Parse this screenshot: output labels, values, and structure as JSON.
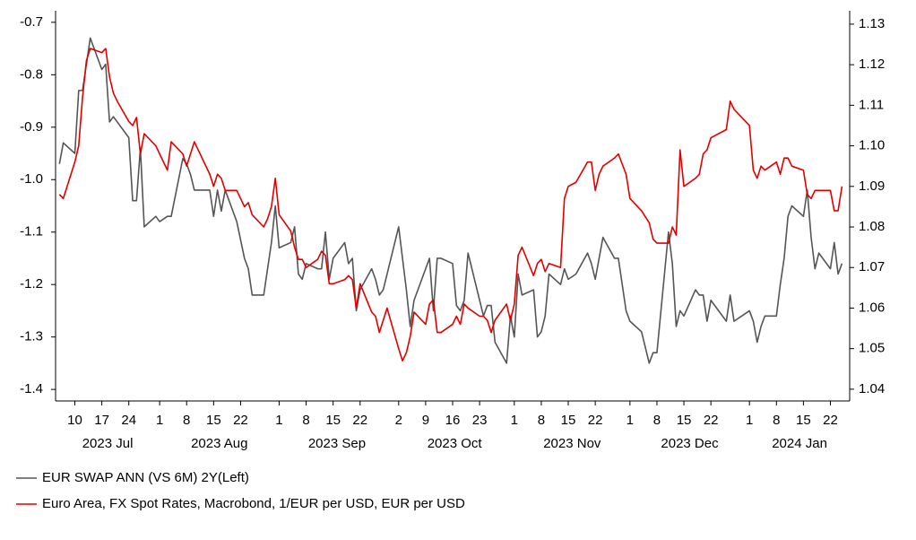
{
  "chart_data": {
    "type": "line",
    "x": [
      "2023-07-06",
      "2023-07-07",
      "2023-07-10",
      "2023-07-11",
      "2023-07-12",
      "2023-07-13",
      "2023-07-14",
      "2023-07-17",
      "2023-07-18",
      "2023-07-19",
      "2023-07-20",
      "2023-07-21",
      "2023-07-24",
      "2023-07-25",
      "2023-07-26",
      "2023-07-27",
      "2023-07-28",
      "2023-07-31",
      "2023-08-01",
      "2023-08-03",
      "2023-08-04",
      "2023-08-07",
      "2023-08-08",
      "2023-08-09",
      "2023-08-10",
      "2023-08-14",
      "2023-08-15",
      "2023-08-16",
      "2023-08-17",
      "2023-08-18",
      "2023-08-21",
      "2023-08-23",
      "2023-08-24",
      "2023-08-25",
      "2023-08-28",
      "2023-08-29",
      "2023-08-30",
      "2023-08-31",
      "2023-09-01",
      "2023-09-04",
      "2023-09-05",
      "2023-09-06",
      "2023-09-07",
      "2023-09-08",
      "2023-09-11",
      "2023-09-12",
      "2023-09-13",
      "2023-09-14",
      "2023-09-15",
      "2023-09-18",
      "2023-09-19",
      "2023-09-20",
      "2023-09-21",
      "2023-09-22",
      "2023-09-25",
      "2023-09-26",
      "2023-09-27",
      "2023-09-28",
      "2023-09-29",
      "2023-10-02",
      "2023-10-03",
      "2023-10-04",
      "2023-10-05",
      "2023-10-06",
      "2023-10-09",
      "2023-10-10",
      "2023-10-11",
      "2023-10-12",
      "2023-10-13",
      "2023-10-16",
      "2023-10-17",
      "2023-10-18",
      "2023-10-19",
      "2023-10-20",
      "2023-10-23",
      "2023-10-24",
      "2023-10-25",
      "2023-10-26",
      "2023-10-27",
      "2023-10-30",
      "2023-10-31",
      "2023-11-01",
      "2023-11-02",
      "2023-11-03",
      "2023-11-06",
      "2023-11-07",
      "2023-11-08",
      "2023-11-09",
      "2023-11-10",
      "2023-11-13",
      "2023-11-14",
      "2023-11-15",
      "2023-11-17",
      "2023-11-20",
      "2023-11-21",
      "2023-11-22",
      "2023-11-23",
      "2023-11-24",
      "2023-11-27",
      "2023-11-28",
      "2023-11-30",
      "2023-12-01",
      "2023-12-04",
      "2023-12-06",
      "2023-12-07",
      "2023-12-08",
      "2023-12-11",
      "2023-12-12",
      "2023-12-13",
      "2023-12-14",
      "2023-12-15",
      "2023-12-18",
      "2023-12-19",
      "2023-12-20",
      "2023-12-21",
      "2023-12-22",
      "2023-12-26",
      "2023-12-27",
      "2023-12-28",
      "2024-01-01",
      "2024-01-02",
      "2024-01-03",
      "2024-01-04",
      "2024-01-05",
      "2024-01-08",
      "2024-01-09",
      "2024-01-10",
      "2024-01-11",
      "2024-01-12",
      "2024-01-15",
      "2024-01-16",
      "2024-01-17",
      "2024-01-18",
      "2024-01-19",
      "2024-01-22",
      "2024-01-23",
      "2024-01-24",
      "2024-01-25"
    ],
    "series": [
      {
        "name": "EUR SWAP ANN (VS 6M) 2Y(Left)",
        "color": "#555555",
        "values": [
          -0.97,
          -0.93,
          -0.95,
          -0.83,
          -0.83,
          -0.78,
          -0.73,
          -0.79,
          -0.78,
          -0.89,
          -0.88,
          -0.89,
          -0.92,
          -1.04,
          -1.04,
          -0.94,
          -1.09,
          -1.07,
          -1.08,
          -1.07,
          -1.07,
          -0.96,
          -0.97,
          -0.99,
          -1.02,
          -1.02,
          -1.07,
          -1.02,
          -1.06,
          -1.02,
          -1.08,
          -1.15,
          -1.17,
          -1.22,
          -1.22,
          -1.17,
          -1.12,
          -1.05,
          -1.13,
          -1.12,
          -1.09,
          -1.18,
          -1.19,
          -1.16,
          -1.17,
          -1.17,
          -1.1,
          -1.19,
          -1.15,
          -1.12,
          -1.16,
          -1.15,
          -1.25,
          -1.21,
          -1.17,
          -1.19,
          -1.22,
          -1.21,
          -1.18,
          -1.09,
          -1.15,
          -1.21,
          -1.28,
          -1.23,
          -1.17,
          -1.15,
          -1.25,
          -1.15,
          -1.15,
          -1.16,
          -1.24,
          -1.25,
          -1.23,
          -1.14,
          -1.23,
          -1.26,
          -1.24,
          -1.24,
          -1.31,
          -1.35,
          -1.26,
          -1.3,
          -1.18,
          -1.22,
          -1.21,
          -1.3,
          -1.29,
          -1.26,
          -1.18,
          -1.2,
          -1.17,
          -1.19,
          -1.18,
          -1.14,
          -1.16,
          -1.19,
          -1.15,
          -1.11,
          -1.15,
          -1.15,
          -1.25,
          -1.27,
          -1.29,
          -1.35,
          -1.33,
          -1.33,
          -1.1,
          -1.16,
          -1.28,
          -1.25,
          -1.26,
          -1.21,
          -1.22,
          -1.22,
          -1.27,
          -1.23,
          -1.27,
          -1.22,
          -1.27,
          -1.25,
          -1.27,
          -1.31,
          -1.28,
          -1.26,
          -1.26,
          -1.2,
          -1.15,
          -1.07,
          -1.05,
          -1.07,
          -1.02,
          -1.11,
          -1.17,
          -1.14,
          -1.17,
          -1.12,
          -1.18,
          -1.16
        ]
      },
      {
        "name": "Euro Area, FX Spot Rates, Macrobond, 1/EUR per USD, EUR per USD",
        "color": "#e00000",
        "axis": "y2",
        "values": [
          1.088,
          1.087,
          1.096,
          1.1,
          1.112,
          1.121,
          1.124,
          1.123,
          1.124,
          1.117,
          1.113,
          1.111,
          1.106,
          1.105,
          1.107,
          1.098,
          1.103,
          1.1,
          1.098,
          1.094,
          1.101,
          1.098,
          1.095,
          1.098,
          1.101,
          1.093,
          1.09,
          1.093,
          1.092,
          1.089,
          1.089,
          1.085,
          1.086,
          1.083,
          1.08,
          1.082,
          1.085,
          1.092,
          1.083,
          1.079,
          1.075,
          1.072,
          1.072,
          1.07,
          1.072,
          1.074,
          1.073,
          1.066,
          1.066,
          1.067,
          1.068,
          1.067,
          1.06,
          1.066,
          1.059,
          1.058,
          1.054,
          1.057,
          1.06,
          1.05,
          1.047,
          1.049,
          1.053,
          1.059,
          1.056,
          1.061,
          1.062,
          1.054,
          1.054,
          1.056,
          1.058,
          1.056,
          1.061,
          1.06,
          1.058,
          1.058,
          1.057,
          1.054,
          1.057,
          1.061,
          1.057,
          1.061,
          1.073,
          1.075,
          1.068,
          1.071,
          1.072,
          1.069,
          1.071,
          1.07,
          1.087,
          1.09,
          1.091,
          1.096,
          1.096,
          1.089,
          1.093,
          1.095,
          1.097,
          1.098,
          1.093,
          1.087,
          1.084,
          1.081,
          1.077,
          1.076,
          1.076,
          1.08,
          1.078,
          1.099,
          1.09,
          1.092,
          1.093,
          1.098,
          1.099,
          1.102,
          1.104,
          1.111,
          1.109,
          1.105,
          1.094,
          1.092,
          1.095,
          1.094,
          1.096,
          1.093,
          1.097,
          1.097,
          1.095,
          1.094,
          1.088,
          1.087,
          1.089,
          1.089,
          1.089,
          1.084,
          1.084,
          1.09
        ]
      }
    ],
    "xlim": [
      "2023-07-05",
      "2024-01-27"
    ],
    "xticks": [
      {
        "value": "2023-07-10",
        "label": "10"
      },
      {
        "value": "2023-07-17",
        "label": "17"
      },
      {
        "value": "2023-07-24",
        "label": "24"
      },
      {
        "value": "2023-08-01",
        "label": "1"
      },
      {
        "value": "2023-08-08",
        "label": "8"
      },
      {
        "value": "2023-08-15",
        "label": "15"
      },
      {
        "value": "2023-08-22",
        "label": "22"
      },
      {
        "value": "2023-09-01",
        "label": "1"
      },
      {
        "value": "2023-09-08",
        "label": "8"
      },
      {
        "value": "2023-09-15",
        "label": "15"
      },
      {
        "value": "2023-09-22",
        "label": "22"
      },
      {
        "value": "2023-10-02",
        "label": "2"
      },
      {
        "value": "2023-10-09",
        "label": "9"
      },
      {
        "value": "2023-10-16",
        "label": "16"
      },
      {
        "value": "2023-10-23",
        "label": "23"
      },
      {
        "value": "2023-11-01",
        "label": "1"
      },
      {
        "value": "2023-11-08",
        "label": "8"
      },
      {
        "value": "2023-11-15",
        "label": "15"
      },
      {
        "value": "2023-11-22",
        "label": "22"
      },
      {
        "value": "2023-12-01",
        "label": "1"
      },
      {
        "value": "2023-12-08",
        "label": "8"
      },
      {
        "value": "2023-12-15",
        "label": "15"
      },
      {
        "value": "2023-12-22",
        "label": "22"
      },
      {
        "value": "2024-01-01",
        "label": "1"
      },
      {
        "value": "2024-01-08",
        "label": "8"
      },
      {
        "value": "2024-01-15",
        "label": "15"
      },
      {
        "value": "2024-01-22",
        "label": "22"
      }
    ],
    "x_groups": [
      {
        "value": "2023-07",
        "label": "2023 Jul"
      },
      {
        "value": "2023-08",
        "label": "2023 Aug"
      },
      {
        "value": "2023-09",
        "label": "2023 Sep"
      },
      {
        "value": "2023-10",
        "label": "2023 Oct"
      },
      {
        "value": "2023-11",
        "label": "2023 Nov"
      },
      {
        "value": "2023-12",
        "label": "2023 Dec"
      },
      {
        "value": "2024-01",
        "label": "2024 Jan"
      }
    ],
    "ylim": [
      -1.422,
      -0.678
    ],
    "yticks": [
      -0.7,
      -0.8,
      -0.9,
      {
        "value": -1,
        "label": "-1.0"
      },
      -1.1,
      -1.2,
      -1.3,
      -1.4
    ],
    "y2lim": [
      1.0371,
      1.1333
    ],
    "y2ticks": [
      1.13,
      1.12,
      1.11,
      {
        "value": 1.1,
        "label": "1.10"
      },
      1.09,
      1.08,
      1.07,
      1.06,
      1.05,
      1.04
    ],
    "grid": false,
    "legend": "bottom-left"
  }
}
